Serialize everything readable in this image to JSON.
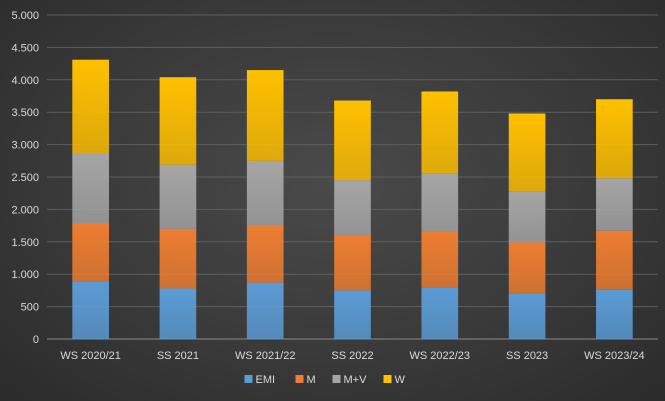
{
  "chart_data": {
    "type": "bar",
    "stacked": true,
    "title": "",
    "xlabel": "",
    "ylabel": "",
    "categories": [
      "WS 2020/21",
      "SS 2021",
      "WS 2021/22",
      "SS 2022",
      "WS 2022/23",
      "SS 2023",
      "WS 2023/24"
    ],
    "series": [
      {
        "name": "EMI",
        "color": "#5b9bd5",
        "values": [
          880,
          780,
          870,
          750,
          790,
          700,
          760
        ]
      },
      {
        "name": "M",
        "color": "#ed7d31",
        "values": [
          910,
          920,
          890,
          840,
          870,
          790,
          910
        ]
      },
      {
        "name": "M+V",
        "color": "#a5a5a5",
        "values": [
          1080,
          990,
          990,
          860,
          890,
          790,
          810
        ]
      },
      {
        "name": "W",
        "color": "#ffc000",
        "values": [
          1440,
          1350,
          1400,
          1230,
          1270,
          1200,
          1220
        ]
      }
    ],
    "ylim": [
      0,
      5000
    ],
    "yticks": [
      0,
      500,
      1000,
      1500,
      2000,
      2500,
      3000,
      3500,
      4000,
      4500,
      5000
    ],
    "ytick_labels": [
      "0",
      "500",
      "1.000",
      "1.500",
      "2.000",
      "2.500",
      "3.000",
      "3.500",
      "4.000",
      "4.500",
      "5.000"
    ],
    "grid": true,
    "legend_position": "bottom-center"
  }
}
